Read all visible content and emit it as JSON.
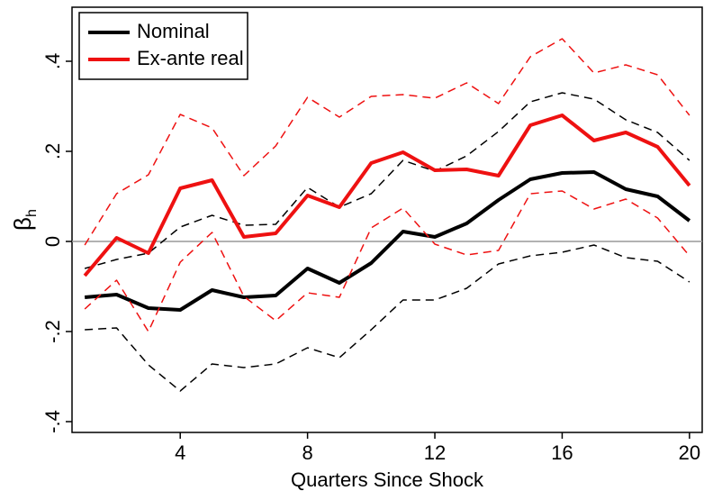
{
  "chart_data": {
    "type": "line",
    "x_label": "Quarters Since Shock",
    "y_label": "β",
    "y_label_sub": "h",
    "x": [
      1,
      2,
      3,
      4,
      5,
      6,
      7,
      8,
      9,
      10,
      11,
      12,
      13,
      14,
      15,
      16,
      17,
      18,
      19,
      20
    ],
    "xlim": [
      0.6,
      20.4
    ],
    "xticks": [
      4,
      8,
      12,
      16,
      20
    ],
    "ylim": [
      -0.424,
      0.52
    ],
    "yticks": [
      {
        "value": -0.4,
        "label": "-.4"
      },
      {
        "value": -0.2,
        "label": "-.2"
      },
      0,
      {
        "value": 0.2,
        "label": ".2"
      },
      {
        "value": 0.4,
        "label": ".4"
      }
    ],
    "reference_line": 0,
    "legend": "top-left",
    "series": [
      {
        "name": "Nominal",
        "color": "#000000",
        "style": "solid",
        "values": [
          -0.124,
          -0.118,
          -0.148,
          -0.152,
          -0.108,
          -0.124,
          -0.12,
          -0.06,
          -0.092,
          -0.048,
          0.022,
          0.01,
          0.04,
          0.092,
          0.138,
          0.152,
          0.154,
          0.116,
          0.1,
          0.046
        ]
      },
      {
        "color": "#000000",
        "style": "dashed",
        "values": [
          -0.06,
          -0.04,
          -0.026,
          0.032,
          0.058,
          0.036,
          0.038,
          0.12,
          0.076,
          0.106,
          0.18,
          0.156,
          0.19,
          0.244,
          0.31,
          0.33,
          0.316,
          0.27,
          0.242,
          0.18
        ]
      },
      {
        "color": "#000000",
        "style": "dashed",
        "values": [
          -0.196,
          -0.192,
          -0.274,
          -0.332,
          -0.272,
          -0.28,
          -0.272,
          -0.236,
          -0.258,
          -0.196,
          -0.13,
          -0.13,
          -0.104,
          -0.05,
          -0.032,
          -0.024,
          -0.008,
          -0.036,
          -0.044,
          -0.09
        ]
      },
      {
        "name": "Ex-ante real",
        "color": "#ee1111",
        "style": "solid",
        "values": [
          -0.076,
          0.008,
          -0.026,
          0.118,
          0.136,
          0.01,
          0.018,
          0.102,
          0.076,
          0.174,
          0.198,
          0.158,
          0.16,
          0.146,
          0.258,
          0.28,
          0.224,
          0.242,
          0.21,
          0.124
        ]
      },
      {
        "color": "#ee1111",
        "style": "dashed",
        "values": [
          -0.008,
          0.106,
          0.148,
          0.282,
          0.252,
          0.146,
          0.212,
          0.32,
          0.276,
          0.322,
          0.326,
          0.318,
          0.352,
          0.306,
          0.41,
          0.45,
          0.374,
          0.392,
          0.37,
          0.28
        ]
      },
      {
        "color": "#ee1111",
        "style": "dashed",
        "values": [
          -0.15,
          -0.086,
          -0.2,
          -0.046,
          0.02,
          -0.122,
          -0.176,
          -0.114,
          -0.124,
          0.03,
          0.074,
          -0.006,
          -0.03,
          -0.02,
          0.106,
          0.112,
          0.072,
          0.094,
          0.052,
          -0.032
        ]
      }
    ]
  }
}
